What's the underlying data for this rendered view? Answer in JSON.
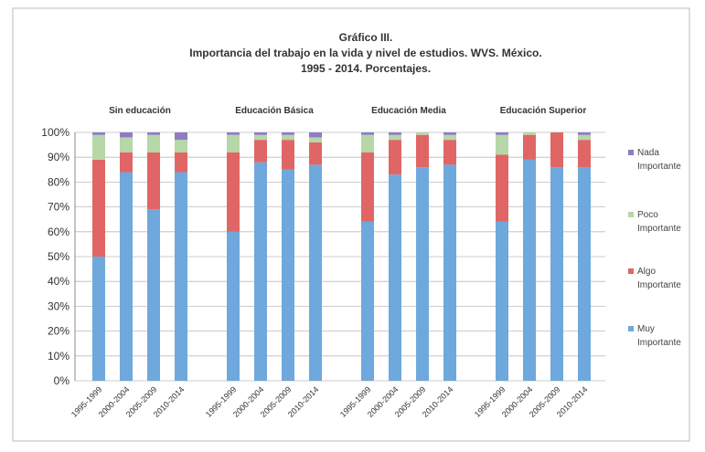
{
  "chart_data": {
    "type": "stacked_bar",
    "title_lines": [
      "Gráfico III.",
      "Importancia del trabajo en la vida y nivel de estudios. WVS. México.",
      "1995 - 2014. Porcentajes."
    ],
    "groups": [
      "Sin educación",
      "Educación Básica",
      "Educación Media",
      "Educación Superior"
    ],
    "categories": [
      "1995-1999",
      "2000-2004",
      "2005-2009",
      "2010-2014",
      "1995-1999",
      "2000-2004",
      "2005-2009",
      "2010-2014",
      "1995-1999",
      "2000-2004",
      "2005-2009",
      "2010-2014",
      "1995-1999",
      "2000-2004",
      "2005-2009",
      "2010-2014"
    ],
    "series": [
      {
        "name": "Muy Importante",
        "color": "#6fa8dc",
        "values": [
          50,
          84,
          69,
          84,
          60,
          88,
          85,
          87,
          64,
          83,
          86,
          87,
          64,
          89,
          86,
          86
        ]
      },
      {
        "name": "Algo Importante",
        "color": "#e06666",
        "values": [
          39,
          8,
          23,
          8,
          32,
          9,
          12,
          9,
          28,
          14,
          13,
          10,
          27,
          10,
          14,
          11
        ]
      },
      {
        "name": "Poco Importante",
        "color": "#b6d7a8",
        "values": [
          10,
          6,
          7,
          5,
          7,
          2,
          2,
          2,
          7,
          2,
          1,
          2,
          8,
          1,
          0,
          2
        ]
      },
      {
        "name": "Nada Importante",
        "color": "#8e7cc3",
        "values": [
          1,
          2,
          1,
          3,
          1,
          1,
          1,
          2,
          1,
          1,
          0,
          1,
          1,
          0,
          0,
          1
        ]
      }
    ],
    "ylim": [
      0,
      100
    ],
    "yticks": [
      {
        "value": 0,
        "label": "0%"
      },
      {
        "value": 10,
        "label": "10%"
      },
      {
        "value": 20,
        "label": "20%"
      },
      {
        "value": 30,
        "label": "30%"
      },
      {
        "value": 40,
        "label": "40%"
      },
      {
        "value": 50,
        "label": "50%"
      },
      {
        "value": 60,
        "label": "60%"
      },
      {
        "value": 70,
        "label": "70%"
      },
      {
        "value": 80,
        "label": "80%"
      },
      {
        "value": 90,
        "label": "90%"
      },
      {
        "value": 100,
        "label": "100%"
      }
    ],
    "grid": true,
    "legend": "right"
  }
}
